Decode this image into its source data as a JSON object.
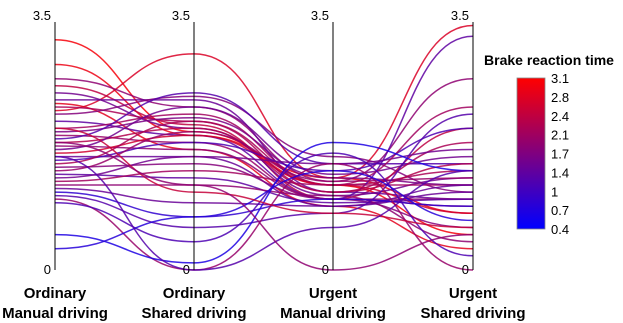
{
  "chart_data": {
    "type": "parallel-coordinates",
    "axes": [
      {
        "line1": "Ordinary",
        "line2": "Manual driving",
        "min": "0",
        "max": "3.5"
      },
      {
        "line1": "Ordinary",
        "line2": "Shared driving",
        "min": "0",
        "max": "3.5"
      },
      {
        "line1": "Urgent",
        "line2": "Manual driving",
        "min": "0",
        "max": "3.5"
      },
      {
        "line1": "Urgent",
        "line2": "Shared driving",
        "min": "0",
        "max": "3.5"
      }
    ],
    "range": [
      0,
      3.5
    ],
    "colorbar": {
      "title": "Brake reaction time",
      "min": 0.4,
      "max": 3.1,
      "colors": [
        "#0000ff",
        "#ff0000"
      ],
      "ticks": [
        "3.1",
        "2.8",
        "2.4",
        "2.1",
        "1.7",
        "1.4",
        "1",
        "0.7",
        "0.4"
      ]
    },
    "lines": [
      [
        3.25,
        1.95,
        1.2,
        0.5
      ],
      [
        2.9,
        1.9,
        1.3,
        0.8
      ],
      [
        2.35,
        1.7,
        0.9,
        0.3
      ],
      [
        2.25,
        3.05,
        1.3,
        3.45
      ],
      [
        2.7,
        2.3,
        1.25,
        2.7
      ],
      [
        2.6,
        2.05,
        1.0,
        2.0
      ],
      [
        2.5,
        2.0,
        1.05,
        1.3
      ],
      [
        2.4,
        2.4,
        1.1,
        1.0
      ],
      [
        2.3,
        2.1,
        1.2,
        1.4
      ],
      [
        2.2,
        2.45,
        1.6,
        1.1
      ],
      [
        2.1,
        1.9,
        1.0,
        3.3
      ],
      [
        2.0,
        2.2,
        1.2,
        1.2
      ],
      [
        1.95,
        2.15,
        1.3,
        1.2
      ],
      [
        1.9,
        1.8,
        1.0,
        0.9
      ],
      [
        1.85,
        2.5,
        1.5,
        1.5
      ],
      [
        1.8,
        2.0,
        1.1,
        1.5
      ],
      [
        1.75,
        1.7,
        1.0,
        1.0
      ],
      [
        1.7,
        2.3,
        1.35,
        1.6
      ],
      [
        1.65,
        1.9,
        1.2,
        0.8
      ],
      [
        1.6,
        1.6,
        0.9,
        1.2
      ],
      [
        1.55,
        1.8,
        1.4,
        2.0
      ],
      [
        1.5,
        2.1,
        1.1,
        1.8
      ],
      [
        1.45,
        1.5,
        1.0,
        0.6
      ],
      [
        1.4,
        1.95,
        1.25,
        1.3
      ],
      [
        1.35,
        1.3,
        0.95,
        1.0
      ],
      [
        1.3,
        1.6,
        1.5,
        1.7
      ],
      [
        1.25,
        1.4,
        1.2,
        2.3
      ],
      [
        1.2,
        1.2,
        1.05,
        0.4
      ],
      [
        1.15,
        0.95,
        0.9,
        1.1
      ],
      [
        1.1,
        0.75,
        1.0,
        0.9
      ],
      [
        1.05,
        0.6,
        0.8,
        2.2
      ],
      [
        1.0,
        0.0,
        1.5,
        0.0
      ],
      [
        0.95,
        0.4,
        1.65,
        0.2
      ],
      [
        0.5,
        0.1,
        1.8,
        1.4
      ],
      [
        0.3,
        0.75,
        1.4,
        0.7
      ],
      [
        2.0,
        1.1,
        0.8,
        0.6
      ],
      [
        1.6,
        0.0,
        0.6,
        1.4
      ],
      [
        1.8,
        1.2,
        0.0,
        0.5
      ]
    ],
    "line_values": [
      3.0,
      2.9,
      2.8,
      2.7,
      1.9,
      2.4,
      1.6,
      1.5,
      2.2,
      1.8,
      1.4,
      2.1,
      1.7,
      2.0,
      1.3,
      2.3,
      1.9,
      1.6,
      2.6,
      1.5,
      1.2,
      2.2,
      1.8,
      2.0,
      1.4,
      1.6,
      2.1,
      1.9,
      1.5,
      0.9,
      1.3,
      2.0,
      1.2,
      0.7,
      0.8,
      2.5,
      1.3,
      1.9
    ],
    "ylim": [
      0,
      3.5
    ],
    "grid": false
  }
}
